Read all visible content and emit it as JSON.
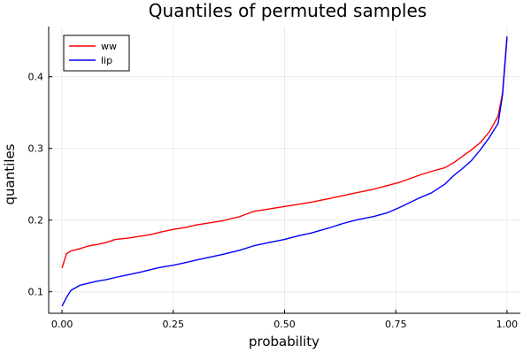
{
  "chart_data": {
    "type": "line",
    "title": "Quantiles of permuted samples",
    "xlabel": "probability",
    "ylabel": "quantiles",
    "xlim": [
      -0.03,
      1.03
    ],
    "ylim": [
      0.07,
      0.47
    ],
    "xticks": [
      {
        "value": 0.0,
        "label": "0.00"
      },
      {
        "value": 0.25,
        "label": "0.25"
      },
      {
        "value": 0.5,
        "label": "0.50"
      },
      {
        "value": 0.75,
        "label": "0.75"
      },
      {
        "value": 1.0,
        "label": "1.00"
      }
    ],
    "yticks": [
      {
        "value": 0.1,
        "label": "0.1"
      },
      {
        "value": 0.2,
        "label": "0.2"
      },
      {
        "value": 0.3,
        "label": "0.3"
      },
      {
        "value": 0.4,
        "label": "0.4"
      }
    ],
    "grid": true,
    "legend_position": "top-left",
    "series": [
      {
        "name": "ww",
        "color": "#ff0000",
        "points": [
          [
            0.0,
            0.133
          ],
          [
            0.01,
            0.153
          ],
          [
            0.02,
            0.157
          ],
          [
            0.04,
            0.16
          ],
          [
            0.06,
            0.164
          ],
          [
            0.08,
            0.166
          ],
          [
            0.1,
            0.169
          ],
          [
            0.12,
            0.173
          ],
          [
            0.15,
            0.175
          ],
          [
            0.18,
            0.178
          ],
          [
            0.2,
            0.18
          ],
          [
            0.22,
            0.183
          ],
          [
            0.25,
            0.187
          ],
          [
            0.28,
            0.19
          ],
          [
            0.3,
            0.193
          ],
          [
            0.33,
            0.196
          ],
          [
            0.36,
            0.199
          ],
          [
            0.4,
            0.205
          ],
          [
            0.43,
            0.212
          ],
          [
            0.46,
            0.215
          ],
          [
            0.5,
            0.219
          ],
          [
            0.53,
            0.222
          ],
          [
            0.56,
            0.225
          ],
          [
            0.6,
            0.23
          ],
          [
            0.63,
            0.234
          ],
          [
            0.66,
            0.238
          ],
          [
            0.7,
            0.243
          ],
          [
            0.73,
            0.248
          ],
          [
            0.76,
            0.253
          ],
          [
            0.8,
            0.262
          ],
          [
            0.83,
            0.268
          ],
          [
            0.86,
            0.273
          ],
          [
            0.88,
            0.28
          ],
          [
            0.9,
            0.289
          ],
          [
            0.92,
            0.298
          ],
          [
            0.94,
            0.308
          ],
          [
            0.96,
            0.323
          ],
          [
            0.98,
            0.345
          ],
          [
            0.99,
            0.378
          ],
          [
            1.0,
            0.456
          ]
        ]
      },
      {
        "name": "lip",
        "color": "#0000ff",
        "points": [
          [
            0.0,
            0.08
          ],
          [
            0.01,
            0.092
          ],
          [
            0.02,
            0.102
          ],
          [
            0.04,
            0.109
          ],
          [
            0.06,
            0.112
          ],
          [
            0.08,
            0.115
          ],
          [
            0.1,
            0.117
          ],
          [
            0.12,
            0.12
          ],
          [
            0.15,
            0.124
          ],
          [
            0.18,
            0.128
          ],
          [
            0.2,
            0.131
          ],
          [
            0.22,
            0.134
          ],
          [
            0.25,
            0.137
          ],
          [
            0.28,
            0.141
          ],
          [
            0.3,
            0.144
          ],
          [
            0.33,
            0.148
          ],
          [
            0.36,
            0.152
          ],
          [
            0.4,
            0.158
          ],
          [
            0.43,
            0.164
          ],
          [
            0.46,
            0.168
          ],
          [
            0.5,
            0.173
          ],
          [
            0.53,
            0.178
          ],
          [
            0.56,
            0.182
          ],
          [
            0.6,
            0.189
          ],
          [
            0.63,
            0.195
          ],
          [
            0.66,
            0.2
          ],
          [
            0.7,
            0.205
          ],
          [
            0.73,
            0.21
          ],
          [
            0.76,
            0.218
          ],
          [
            0.8,
            0.23
          ],
          [
            0.83,
            0.238
          ],
          [
            0.86,
            0.25
          ],
          [
            0.88,
            0.262
          ],
          [
            0.9,
            0.272
          ],
          [
            0.92,
            0.283
          ],
          [
            0.94,
            0.298
          ],
          [
            0.96,
            0.315
          ],
          [
            0.98,
            0.335
          ],
          [
            0.99,
            0.375
          ],
          [
            1.0,
            0.456
          ]
        ]
      }
    ]
  }
}
